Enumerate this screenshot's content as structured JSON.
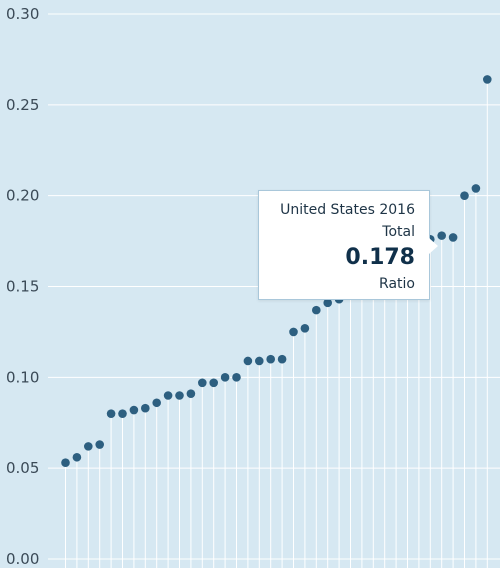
{
  "chart_data": {
    "type": "scatter",
    "title": "",
    "xlabel": "",
    "ylabel": "",
    "ylim": [
      0,
      0.3
    ],
    "yticks": [
      "0.00",
      "0.05",
      "0.10",
      "0.15",
      "0.20",
      "0.25",
      "0.30"
    ],
    "grid": true,
    "series": [
      {
        "values": [
          0.053,
          0.056,
          0.062,
          0.063,
          0.08,
          0.08,
          0.082,
          0.083,
          0.086,
          0.09,
          0.09,
          0.091,
          0.097,
          0.097,
          0.1,
          0.1,
          0.109,
          0.109,
          0.11,
          0.11,
          0.125,
          0.127,
          0.137,
          0.141,
          0.143,
          0.147,
          0.15,
          0.155,
          0.158,
          0.162,
          0.166,
          0.171,
          0.176,
          0.178,
          0.177,
          0.2,
          0.204,
          0.264
        ]
      }
    ],
    "colors": {
      "marker": "#2d5f80",
      "stem": "#ffffff",
      "grid": "#ffffff",
      "background": "#d6e8f2"
    }
  },
  "tooltip": {
    "country_year": "United States 2016",
    "subject": "Total",
    "value": "0.178",
    "unit": "Ratio"
  }
}
